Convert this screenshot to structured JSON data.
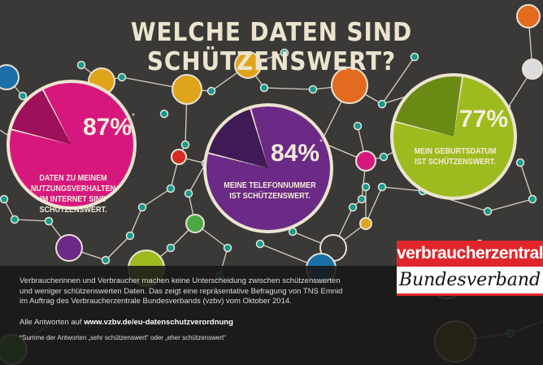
{
  "title": "WELCHE DATEN SIND SCHÜTZENSWERT?",
  "stats": [
    {
      "value": "87%",
      "percent": 87,
      "note": "*",
      "label": [
        "DATEN ZU MEINEM",
        "NUTZUNGSVERHALTEN",
        "IM INTERNET SIND",
        "SCHÜTZENSWERT."
      ],
      "color": "#d6187e",
      "wedge_color": "#9e0f5c"
    },
    {
      "value": "84%",
      "percent": 84,
      "note": "*",
      "label": [
        "MEINE TELEFONNUMMER",
        "IST SCHÜTZENSWERT."
      ],
      "color": "#6b2a85",
      "wedge_color": "#3f1a55"
    },
    {
      "value": "77%",
      "percent": 77,
      "note": "*",
      "label": [
        "MEIN GEBURTSDATUM",
        "IST SCHÜTZENSWERT."
      ],
      "color": "#9dbb1f",
      "wedge_color": "#6a8a14"
    }
  ],
  "body": {
    "paragraph": [
      "Verbraucherinnen und Verbraucher machen keine Unterscheidung zwischen schützenswerten",
      "und weniger schützenswerten Daten. Das zeigt eine repräsentative Befragung von TNS Emnid",
      "im Auftrag des Verbraucherzentrale Bundesverbands (vzbv) vom Oktober 2014."
    ],
    "link_prefix": "Alle Antworten auf ",
    "link": "www.vzbv.de/eu-datenschutzverordnung",
    "footnote": "*Summe der Antworten „sehr schützenswert“ oder „eher schützenswert“"
  },
  "logo": {
    "top": "verbraucherzentrale",
    "bottom": "Bundesverband",
    "color": "#e0262c"
  }
}
